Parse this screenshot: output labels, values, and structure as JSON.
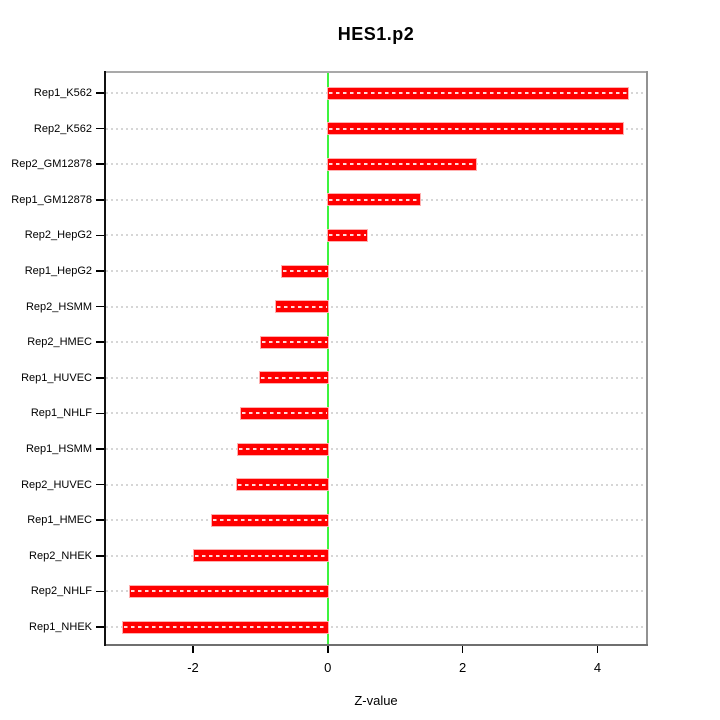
{
  "chart_data": {
    "type": "bar",
    "orientation": "horizontal",
    "title": "HES1.p2",
    "xlabel": "Z-value",
    "categories": [
      "Rep1_K562",
      "Rep2_K562",
      "Rep2_GM12878",
      "Rep1_GM12878",
      "Rep2_HepG2",
      "Rep1_HepG2",
      "Rep2_HSMM",
      "Rep2_HMEC",
      "Rep1_HUVEC",
      "Rep1_NHLF",
      "Rep1_HSMM",
      "Rep2_HUVEC",
      "Rep1_HMEC",
      "Rep2_NHEK",
      "Rep2_NHLF",
      "Rep1_NHEK"
    ],
    "values": [
      4.45,
      4.38,
      2.2,
      1.37,
      0.58,
      -0.68,
      -0.77,
      -0.99,
      -1.01,
      -1.29,
      -1.33,
      -1.35,
      -1.72,
      -1.99,
      -2.94,
      -3.04
    ],
    "xticks": [
      -2,
      0,
      2,
      4
    ],
    "xlim": [
      -3.32,
      4.75
    ],
    "grid": true,
    "legend": false,
    "zero_reference_line": 0,
    "colors": {
      "bar": "#ff0000",
      "bar_edge": "#ffb0b0",
      "bar_stripe": "rgba(255,255,255,0.85)",
      "zero_line": "#3df43d",
      "grid": "#d6d6d6",
      "text": "#000000",
      "box": "#999999"
    }
  }
}
